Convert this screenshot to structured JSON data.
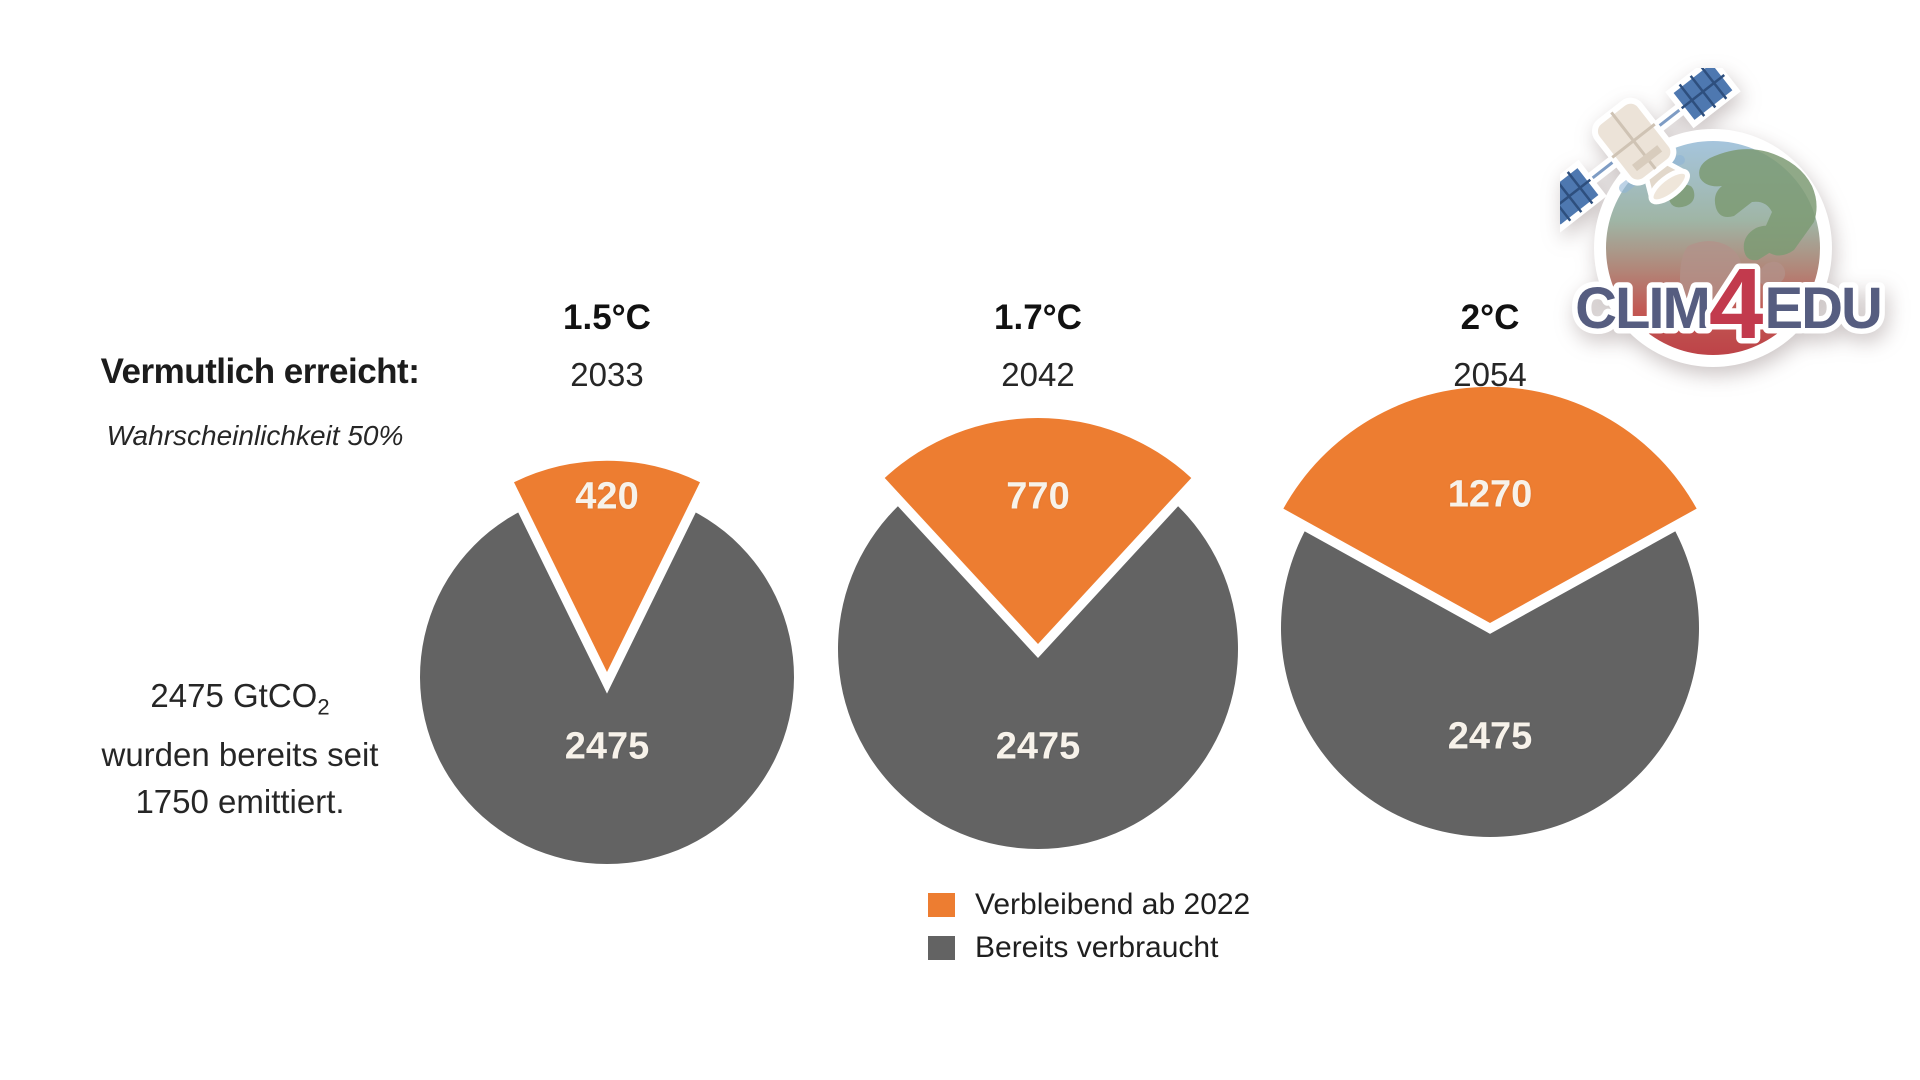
{
  "left_notes": {
    "reached_label": "Vermutlich erreicht:",
    "probability_note": "Wahrscheinlichkeit 50%",
    "emitted_line1": "2475 GtCO",
    "emitted_line1_sub": "2",
    "emitted_line2": "wurden bereits seit",
    "emitted_line3": "1750 emittiert."
  },
  "chart_data": {
    "type": "pie",
    "unit": "GtCO2",
    "pies": [
      {
        "temperature": "1.5°C",
        "year_reached": "2033",
        "remaining_from_2022": 420,
        "already_used": 2475
      },
      {
        "temperature": "1.7°C",
        "year_reached": "2042",
        "remaining_from_2022": 770,
        "already_used": 2475
      },
      {
        "temperature": "2°C",
        "year_reached": "2054",
        "remaining_from_2022": 1270,
        "already_used": 2475
      }
    ],
    "colors": {
      "remaining": "#ED7D31",
      "used": "#636363",
      "slice_gap": "#ffffff"
    },
    "legend": [
      {
        "key": "remaining",
        "label": "Verbleibend ab 2022",
        "color": "#ED7D31"
      },
      {
        "key": "used",
        "label": "Bereits verbraucht",
        "color": "#636363"
      }
    ],
    "layout_hint": "three exploded pies, remaining-slice at 12 o'clock, sizes grow with total budget"
  },
  "logo": {
    "text_prefix": "CLIM",
    "text_number": "4",
    "text_suffix": "EDU",
    "prefix_color": "#565d80",
    "number_color": "#c23a4d"
  }
}
